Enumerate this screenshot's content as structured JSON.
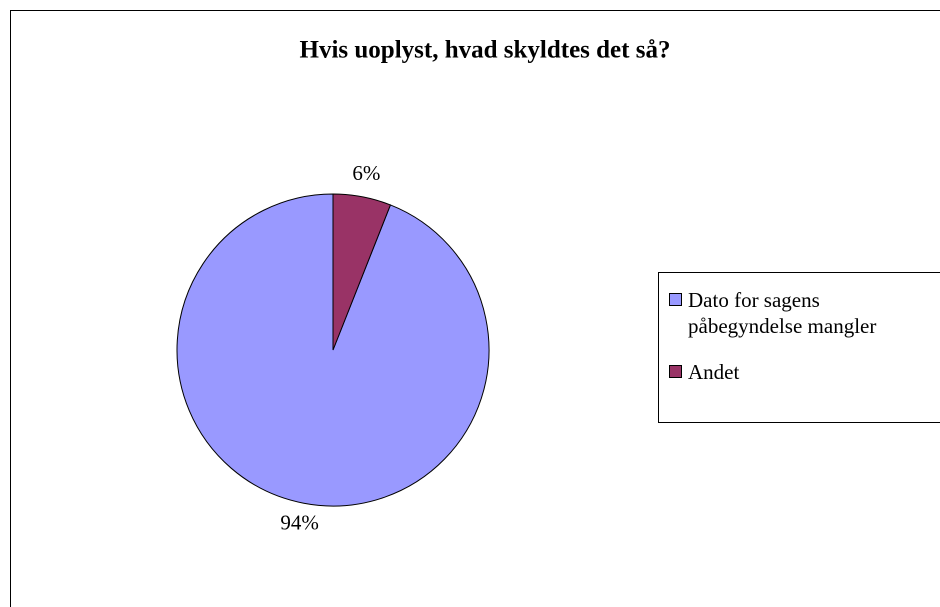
{
  "chart_data": {
    "type": "pie",
    "title": "Hvis uoplyst, hvad skyldtes det så?",
    "categories": [
      "Dato for sagens påbegyndelse mangler",
      "Andet"
    ],
    "values": [
      94,
      6
    ],
    "value_labels": [
      "94%",
      "6%"
    ],
    "colors": [
      "#9999ff",
      "#993366"
    ],
    "legend": "right"
  }
}
